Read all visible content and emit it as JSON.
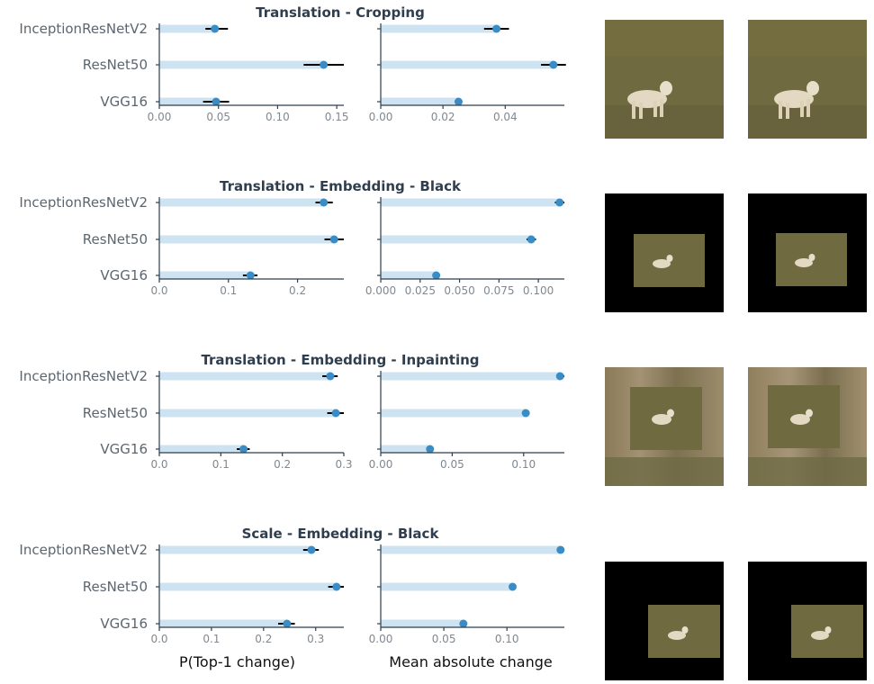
{
  "chart_data": [
    {
      "type": "bar",
      "title": "Translation - Cropping",
      "categories": [
        "InceptionResNetV2",
        "ResNet50",
        "VGG16"
      ],
      "panels": [
        {
          "xlabel": "",
          "xlim": [
            0,
            0.156
          ],
          "ticks": [
            0.0,
            0.05,
            0.1,
            0.15
          ],
          "tick_labels": [
            "0.00",
            "0.05",
            "0.10",
            "0.15"
          ],
          "values": [
            0.047,
            0.139,
            0.048
          ],
          "ci": [
            [
              0.039,
              0.058
            ],
            [
              0.122,
              0.156
            ],
            [
              0.037,
              0.059
            ]
          ]
        },
        {
          "xlabel": "",
          "xlim": [
            0,
            0.059
          ],
          "ticks": [
            0.0,
            0.02,
            0.04
          ],
          "tick_labels": [
            "0.00",
            "0.02",
            "0.04"
          ],
          "values": [
            0.0372,
            0.0555
          ],
          "ci": [
            [
              0.0332,
              0.0412
            ],
            [
              0.0515,
              0.0595
            ]
          ],
          "values_vgg": 0.025,
          "ci_vgg": [
            0.0238,
            0.0262
          ]
        }
      ]
    },
    {
      "type": "bar",
      "title": "Translation - Embedding - Black",
      "categories": [
        "InceptionResNetV2",
        "ResNet50",
        "VGG16"
      ],
      "panels": [
        {
          "xlabel": "",
          "xlim": [
            0,
            0.267
          ],
          "ticks": [
            0.0,
            0.1,
            0.2
          ],
          "tick_labels": [
            "0.0",
            "0.1",
            "0.2"
          ],
          "values": [
            0.238,
            0.253,
            0.132
          ],
          "ci": [
            [
              0.226,
              0.251
            ],
            [
              0.239,
              0.267
            ],
            [
              0.121,
              0.142
            ]
          ]
        },
        {
          "xlabel": "",
          "xlim": [
            0,
            0.1165
          ],
          "ticks": [
            0.0,
            0.025,
            0.05,
            0.075,
            0.1
          ],
          "tick_labels": [
            "0.000",
            "0.025",
            "0.050",
            "0.075",
            "0.100"
          ],
          "values": [
            0.1135,
            0.0955,
            0.0352
          ],
          "ci": [
            [
              0.1105,
              0.1165
            ],
            [
              0.0925,
              0.0985
            ],
            [
              0.0337,
              0.0367
            ]
          ]
        }
      ]
    },
    {
      "type": "bar",
      "title": "Translation - Embedding - Inpainting",
      "categories": [
        "InceptionResNetV2",
        "ResNet50",
        "VGG16"
      ],
      "panels": [
        {
          "xlabel": "",
          "xlim": [
            0,
            0.3
          ],
          "ticks": [
            0.0,
            0.1,
            0.2,
            0.3
          ],
          "tick_labels": [
            "0.0",
            "0.1",
            "0.2",
            "0.3"
          ],
          "values": [
            0.278,
            0.287,
            0.137
          ],
          "ci": [
            [
              0.265,
              0.29
            ],
            [
              0.273,
              0.3
            ],
            [
              0.126,
              0.147
            ]
          ]
        },
        {
          "xlabel": "",
          "xlim": [
            0,
            0.1285
          ],
          "ticks": [
            0.0,
            0.05,
            0.1
          ],
          "tick_labels": [
            "0.00",
            "0.05",
            "0.10"
          ],
          "values": [
            0.1255,
            0.1015,
            0.0345
          ],
          "ci": [
            [
              0.1235,
              0.1285
            ],
            [
              0.1005,
              0.1025
            ],
            [
              0.0335,
              0.0355
            ]
          ]
        }
      ]
    },
    {
      "type": "bar",
      "title": "Scale - Embedding - Black",
      "categories": [
        "InceptionResNetV2",
        "ResNet50",
        "VGG16"
      ],
      "panels": [
        {
          "xlabel": "P(Top-1 change)",
          "xlim": [
            0,
            0.354
          ],
          "ticks": [
            0.0,
            0.1,
            0.2,
            0.3
          ],
          "tick_labels": [
            "0.0",
            "0.1",
            "0.2",
            "0.3"
          ],
          "values": [
            0.292,
            0.34,
            0.245
          ],
          "ci": [
            [
              0.276,
              0.306
            ],
            [
              0.324,
              0.354
            ],
            [
              0.228,
              0.26
            ]
          ]
        },
        {
          "xlabel": "Mean absolute change",
          "xlim": [
            0,
            0.1455
          ],
          "ticks": [
            0.0,
            0.05,
            0.1
          ],
          "tick_labels": [
            "0.00",
            "0.05",
            "0.10"
          ],
          "values": [
            0.1425,
            0.1045,
            0.0655
          ],
          "ci": [
            [
              0.1395,
              0.1455
            ],
            [
              0.1035,
              0.1055
            ],
            [
              0.0635,
              0.0675
            ]
          ]
        }
      ]
    }
  ],
  "colors": {
    "bar": "#cde3f2",
    "point": "#3a8cc6",
    "errorbar": "#000000",
    "axis": "#2f3e4e",
    "tick_label": "#808890",
    "category_label": "#5c6670",
    "title": "#2f3e4e",
    "grass": "#6e6a3e",
    "dog": "#e6dcc6"
  },
  "thumbnails": [
    {
      "name": "cropping",
      "background": "grass"
    },
    {
      "name": "embedding-black",
      "background": "black"
    },
    {
      "name": "embedding-inpainting",
      "background": "inpainted"
    },
    {
      "name": "scale-black",
      "background": "black"
    }
  ]
}
